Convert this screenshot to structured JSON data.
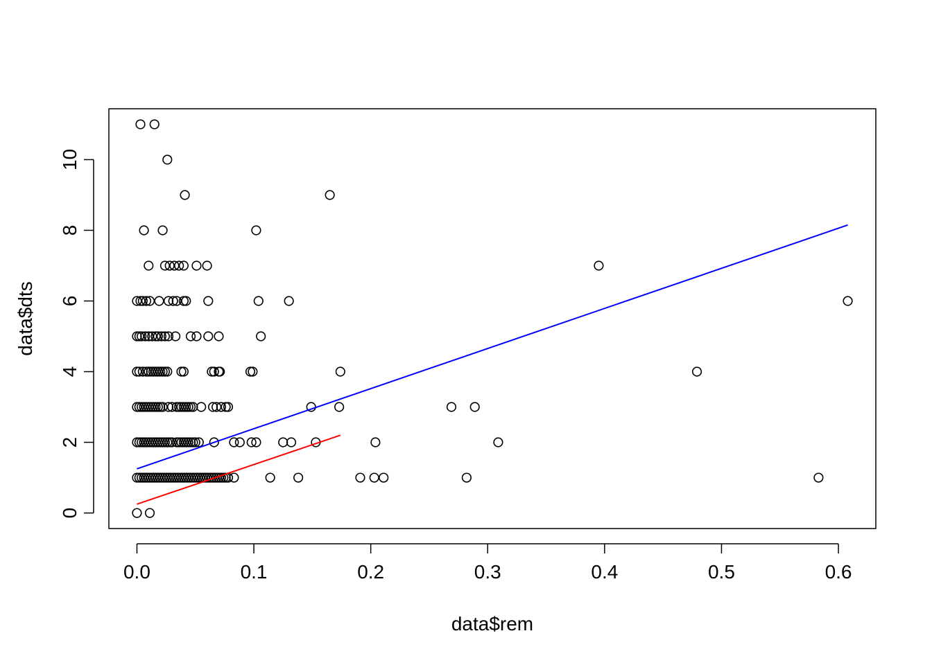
{
  "chart_data": {
    "type": "scatter",
    "title": "",
    "xlabel": "data$rem",
    "ylabel": "data$dts",
    "xlim": [
      -0.024,
      0.632
    ],
    "ylim": [
      -0.44,
      11.44
    ],
    "x_ticks": [
      0.0,
      0.1,
      0.2,
      0.3,
      0.4,
      0.5,
      0.6
    ],
    "x_tick_labels": [
      "0.0",
      "0.1",
      "0.2",
      "0.3",
      "0.4",
      "0.5",
      "0.6"
    ],
    "y_ticks": [
      0,
      2,
      4,
      6,
      8,
      10
    ],
    "y_tick_labels": [
      "0",
      "2",
      "4",
      "6",
      "8",
      "10"
    ],
    "grid": false,
    "legend": "none",
    "points": [
      [
        0.003,
        11
      ],
      [
        0.015,
        11
      ],
      [
        0.026,
        10
      ],
      [
        0.041,
        9
      ],
      [
        0.165,
        9
      ],
      [
        0.006,
        8
      ],
      [
        0.022,
        8
      ],
      [
        0.102,
        8
      ],
      [
        0.01,
        7
      ],
      [
        0.024,
        7
      ],
      [
        0.028,
        7
      ],
      [
        0.032,
        7
      ],
      [
        0.036,
        7
      ],
      [
        0.04,
        7
      ],
      [
        0.051,
        7
      ],
      [
        0.06,
        7
      ],
      [
        0.395,
        7
      ],
      [
        0.0,
        6
      ],
      [
        0.003,
        6
      ],
      [
        0.005,
        6
      ],
      [
        0.008,
        6
      ],
      [
        0.011,
        6
      ],
      [
        0.019,
        6
      ],
      [
        0.027,
        6
      ],
      [
        0.031,
        6
      ],
      [
        0.034,
        6
      ],
      [
        0.04,
        6
      ],
      [
        0.042,
        6
      ],
      [
        0.061,
        6
      ],
      [
        0.104,
        6
      ],
      [
        0.13,
        6
      ],
      [
        0.608,
        6
      ],
      [
        0.0,
        5
      ],
      [
        0.002,
        5
      ],
      [
        0.004,
        5
      ],
      [
        0.007,
        5
      ],
      [
        0.01,
        5
      ],
      [
        0.013,
        5
      ],
      [
        0.016,
        5
      ],
      [
        0.018,
        5
      ],
      [
        0.021,
        5
      ],
      [
        0.024,
        5
      ],
      [
        0.027,
        5
      ],
      [
        0.033,
        5
      ],
      [
        0.046,
        5
      ],
      [
        0.051,
        5
      ],
      [
        0.061,
        5
      ],
      [
        0.07,
        5
      ],
      [
        0.106,
        5
      ],
      [
        0.0,
        4
      ],
      [
        0.002,
        4
      ],
      [
        0.005,
        4
      ],
      [
        0.008,
        4
      ],
      [
        0.01,
        4
      ],
      [
        0.012,
        4
      ],
      [
        0.014,
        4
      ],
      [
        0.016,
        4
      ],
      [
        0.018,
        4
      ],
      [
        0.02,
        4
      ],
      [
        0.022,
        4
      ],
      [
        0.024,
        4
      ],
      [
        0.026,
        4
      ],
      [
        0.038,
        4
      ],
      [
        0.04,
        4
      ],
      [
        0.064,
        4
      ],
      [
        0.066,
        4
      ],
      [
        0.07,
        4
      ],
      [
        0.071,
        4
      ],
      [
        0.097,
        4
      ],
      [
        0.099,
        4
      ],
      [
        0.174,
        4
      ],
      [
        0.479,
        4
      ],
      [
        0.0,
        3
      ],
      [
        0.002,
        3
      ],
      [
        0.004,
        3
      ],
      [
        0.006,
        3
      ],
      [
        0.008,
        3
      ],
      [
        0.01,
        3
      ],
      [
        0.012,
        3
      ],
      [
        0.014,
        3
      ],
      [
        0.016,
        3
      ],
      [
        0.018,
        3
      ],
      [
        0.02,
        3
      ],
      [
        0.022,
        3
      ],
      [
        0.027,
        3
      ],
      [
        0.03,
        3
      ],
      [
        0.034,
        3
      ],
      [
        0.036,
        3
      ],
      [
        0.038,
        3
      ],
      [
        0.04,
        3
      ],
      [
        0.042,
        3
      ],
      [
        0.044,
        3
      ],
      [
        0.046,
        3
      ],
      [
        0.048,
        3
      ],
      [
        0.055,
        3
      ],
      [
        0.065,
        3
      ],
      [
        0.068,
        3
      ],
      [
        0.072,
        3
      ],
      [
        0.076,
        3
      ],
      [
        0.078,
        3
      ],
      [
        0.149,
        3
      ],
      [
        0.173,
        3
      ],
      [
        0.269,
        3
      ],
      [
        0.289,
        3
      ],
      [
        0.0,
        2
      ],
      [
        0.002,
        2
      ],
      [
        0.004,
        2
      ],
      [
        0.006,
        2
      ],
      [
        0.008,
        2
      ],
      [
        0.01,
        2
      ],
      [
        0.012,
        2
      ],
      [
        0.014,
        2
      ],
      [
        0.016,
        2
      ],
      [
        0.018,
        2
      ],
      [
        0.02,
        2
      ],
      [
        0.022,
        2
      ],
      [
        0.024,
        2
      ],
      [
        0.026,
        2
      ],
      [
        0.028,
        2
      ],
      [
        0.03,
        2
      ],
      [
        0.034,
        2
      ],
      [
        0.036,
        2
      ],
      [
        0.038,
        2
      ],
      [
        0.04,
        2
      ],
      [
        0.042,
        2
      ],
      [
        0.044,
        2
      ],
      [
        0.046,
        2
      ],
      [
        0.048,
        2
      ],
      [
        0.05,
        2
      ],
      [
        0.053,
        2
      ],
      [
        0.066,
        2
      ],
      [
        0.083,
        2
      ],
      [
        0.088,
        2
      ],
      [
        0.098,
        2
      ],
      [
        0.102,
        2
      ],
      [
        0.125,
        2
      ],
      [
        0.132,
        2
      ],
      [
        0.153,
        2
      ],
      [
        0.204,
        2
      ],
      [
        0.309,
        2
      ],
      [
        0.0,
        1
      ],
      [
        0.002,
        1
      ],
      [
        0.004,
        1
      ],
      [
        0.006,
        1
      ],
      [
        0.008,
        1
      ],
      [
        0.01,
        1
      ],
      [
        0.012,
        1
      ],
      [
        0.014,
        1
      ],
      [
        0.016,
        1
      ],
      [
        0.018,
        1
      ],
      [
        0.02,
        1
      ],
      [
        0.022,
        1
      ],
      [
        0.024,
        1
      ],
      [
        0.026,
        1
      ],
      [
        0.028,
        1
      ],
      [
        0.03,
        1
      ],
      [
        0.032,
        1
      ],
      [
        0.034,
        1
      ],
      [
        0.036,
        1
      ],
      [
        0.038,
        1
      ],
      [
        0.04,
        1
      ],
      [
        0.042,
        1
      ],
      [
        0.044,
        1
      ],
      [
        0.046,
        1
      ],
      [
        0.048,
        1
      ],
      [
        0.05,
        1
      ],
      [
        0.052,
        1
      ],
      [
        0.054,
        1
      ],
      [
        0.056,
        1
      ],
      [
        0.058,
        1
      ],
      [
        0.06,
        1
      ],
      [
        0.062,
        1
      ],
      [
        0.064,
        1
      ],
      [
        0.066,
        1
      ],
      [
        0.068,
        1
      ],
      [
        0.07,
        1
      ],
      [
        0.072,
        1
      ],
      [
        0.074,
        1
      ],
      [
        0.076,
        1
      ],
      [
        0.078,
        1
      ],
      [
        0.083,
        1
      ],
      [
        0.114,
        1
      ],
      [
        0.138,
        1
      ],
      [
        0.191,
        1
      ],
      [
        0.203,
        1
      ],
      [
        0.211,
        1
      ],
      [
        0.282,
        1
      ],
      [
        0.583,
        1
      ],
      [
        0.0,
        0
      ],
      [
        0.011,
        0
      ]
    ],
    "lines": [
      {
        "color": "#0000ff",
        "x": [
          0.0,
          0.608
        ],
        "y": [
          1.25,
          8.15
        ]
      },
      {
        "color": "#ff0000",
        "x": [
          0.0,
          0.174
        ],
        "y": [
          0.25,
          2.2
        ]
      }
    ]
  }
}
